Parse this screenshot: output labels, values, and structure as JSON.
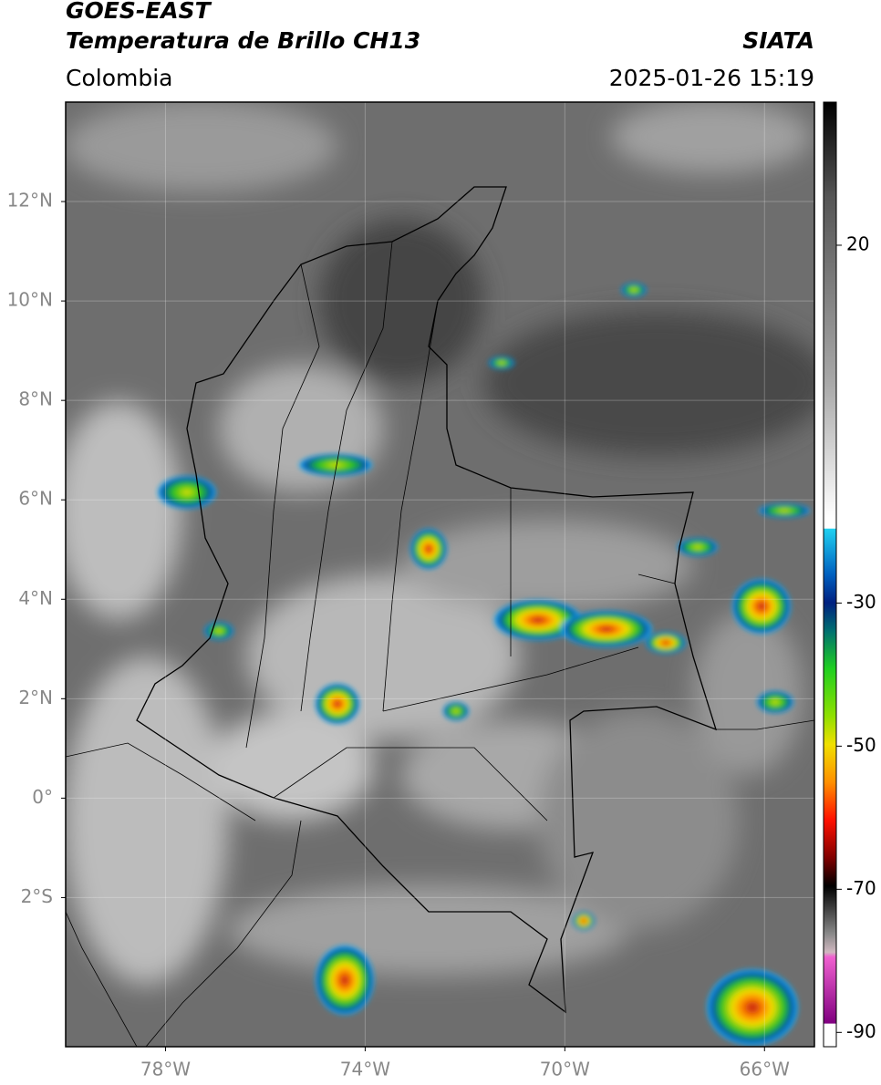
{
  "header": {
    "satellite": "GOES-EAST",
    "product": "Temperatura de Brillo CH13",
    "region": "Colombia",
    "source": "SIATA",
    "timestamp": "2025-01-26 15:19"
  },
  "map": {
    "xlim": [
      -80,
      -65
    ],
    "ylim": [
      -5,
      14
    ],
    "xticks": [
      {
        "value": -78,
        "label": "78°W"
      },
      {
        "value": -74,
        "label": "74°W"
      },
      {
        "value": -70,
        "label": "70°W"
      },
      {
        "value": -66,
        "label": "66°W"
      }
    ],
    "yticks": [
      {
        "value": 12,
        "label": "12°N"
      },
      {
        "value": 10,
        "label": "10°N"
      },
      {
        "value": 8,
        "label": "8°N"
      },
      {
        "value": 6,
        "label": "6°N"
      },
      {
        "value": 4,
        "label": "4°N"
      },
      {
        "value": 2,
        "label": "2°N"
      },
      {
        "value": 0,
        "label": "0°"
      },
      {
        "value": -2,
        "label": "2°S"
      }
    ],
    "grid": true
  },
  "colorbar": {
    "lim": [
      -92,
      40
    ],
    "ticks": [
      20,
      -30,
      -50,
      -70,
      -90
    ]
  }
}
